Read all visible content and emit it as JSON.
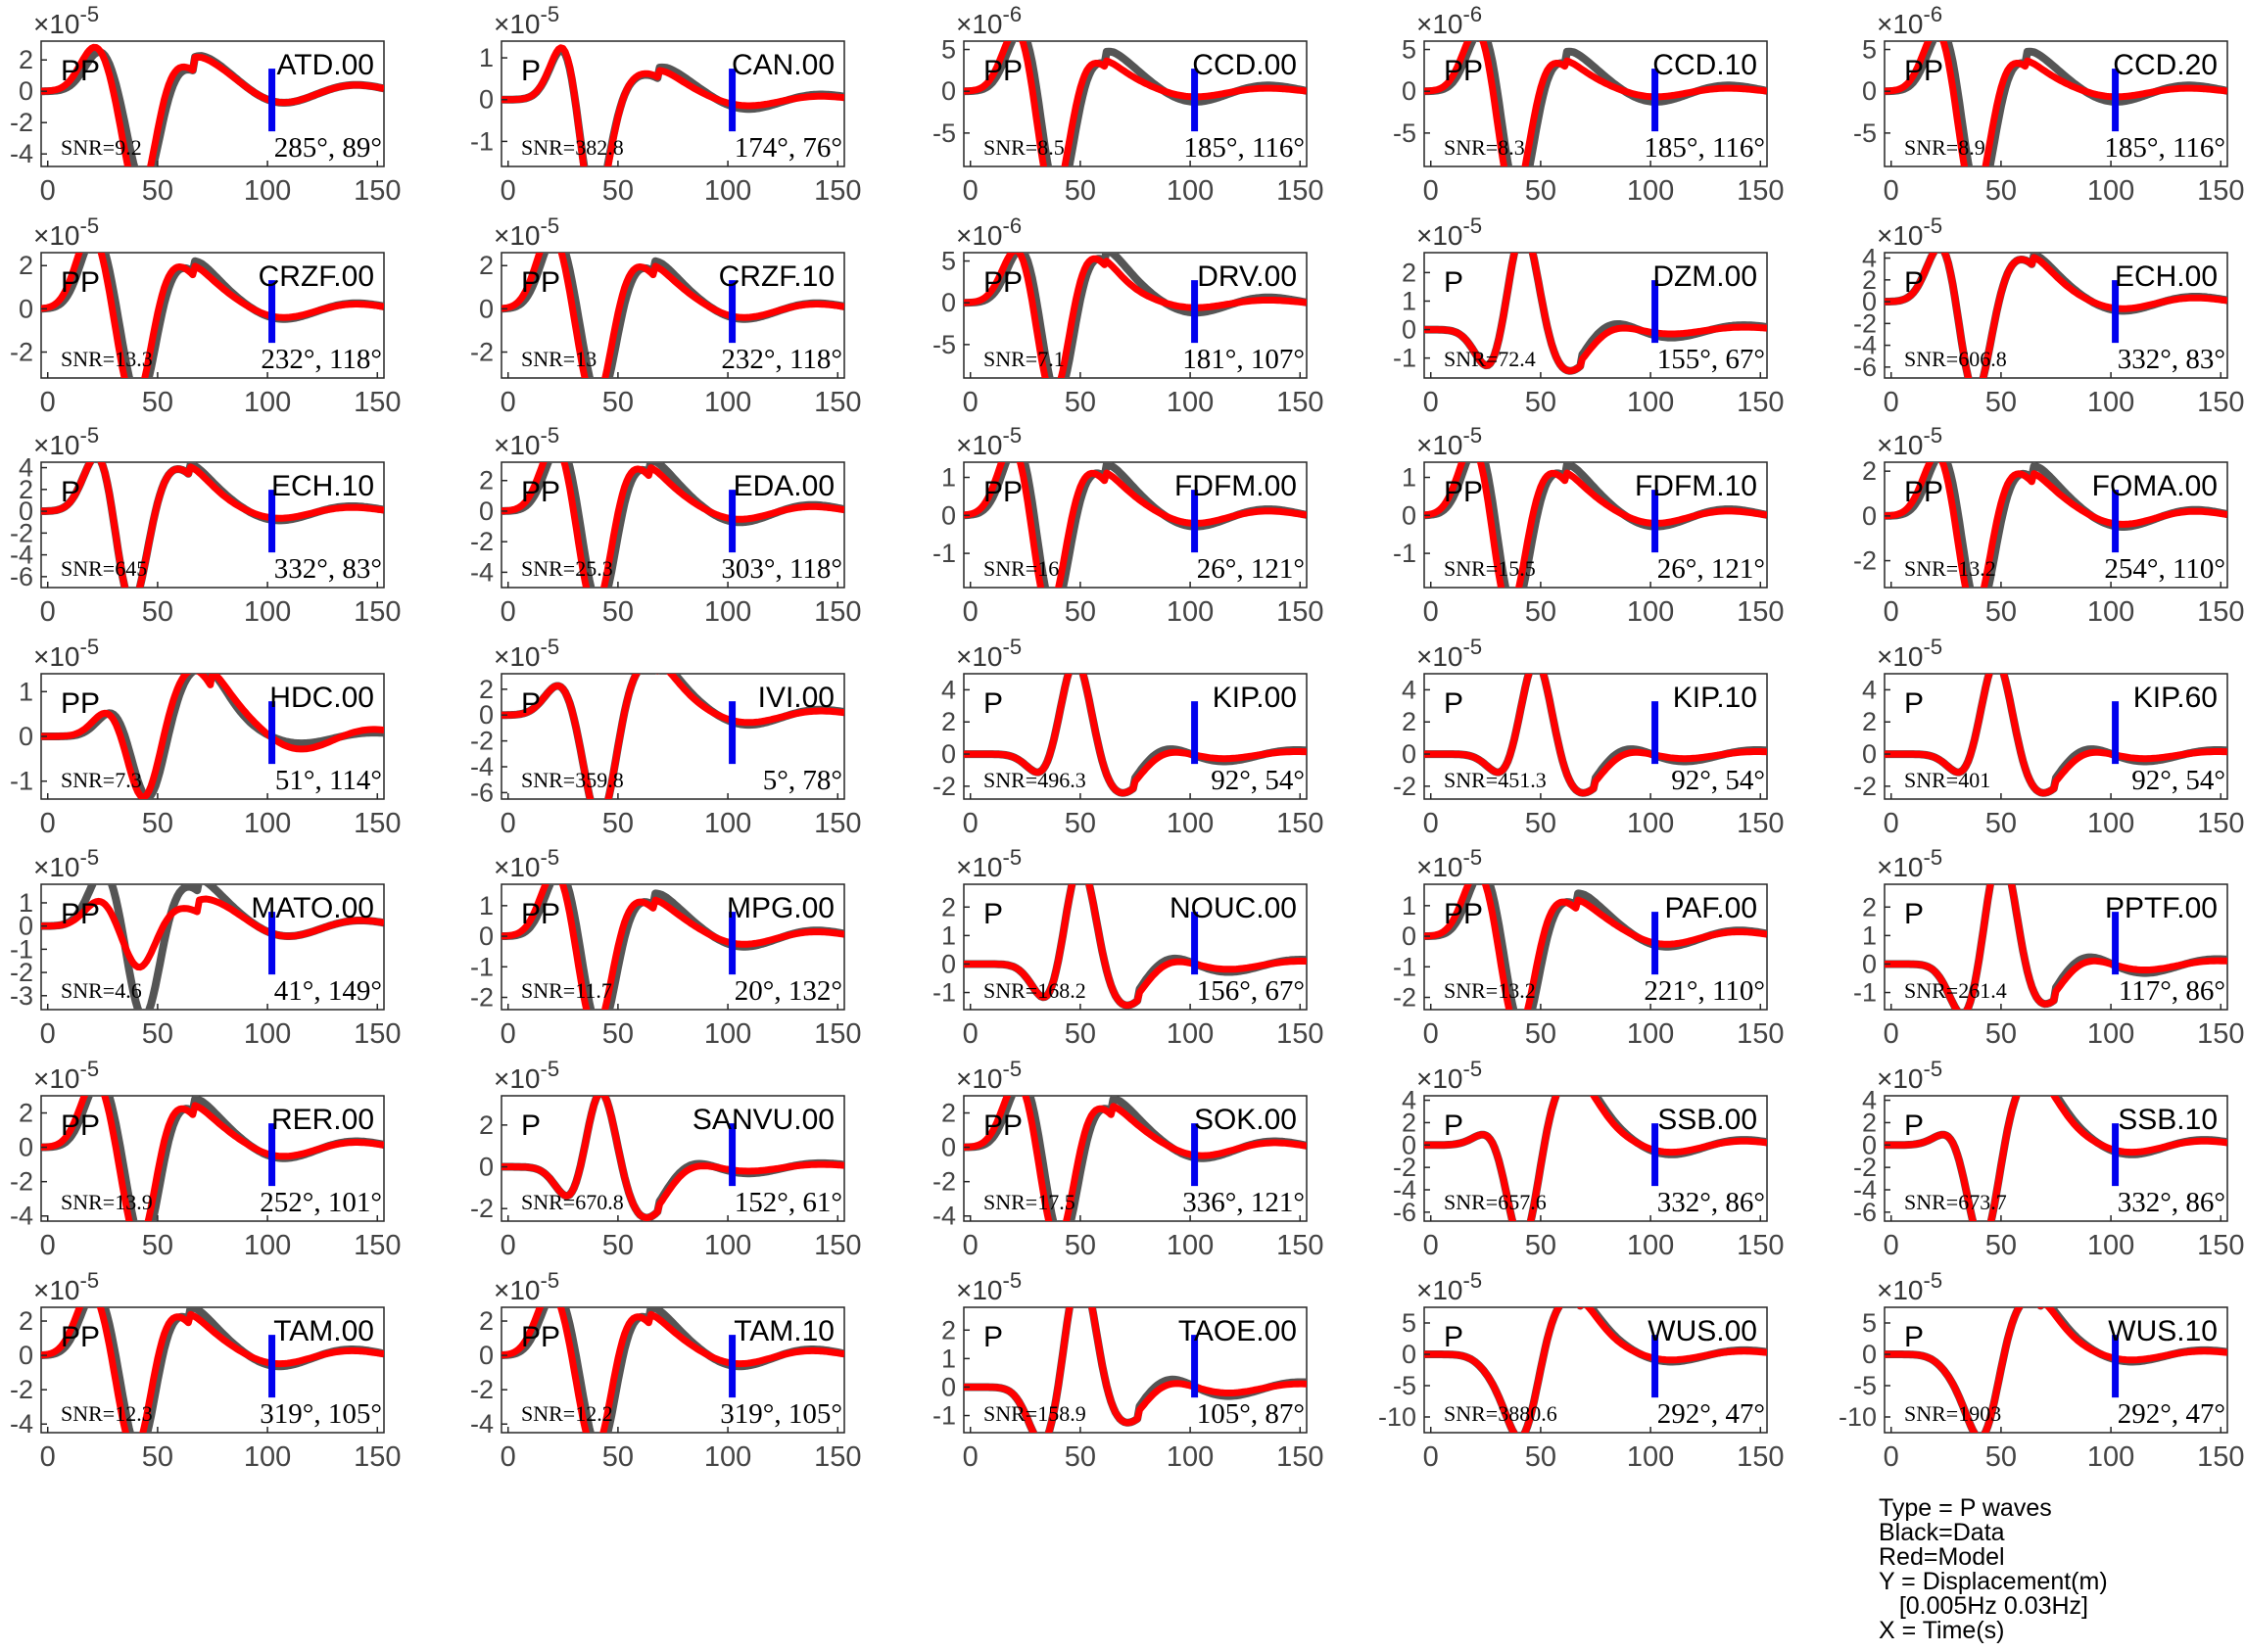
{
  "axis": {
    "x_ticks": [
      "0",
      "50",
      "100",
      "150"
    ],
    "x_range": [
      -3,
      153
    ]
  },
  "colors": {
    "data": "#555555",
    "model": "#ff0000",
    "marker": "#0000ee"
  },
  "legend": {
    "lines": [
      "Type = P waves",
      "Black=Data",
      "Red=Model",
      "Y = Displacement(m)",
      "   [0.005Hz 0.03Hz]",
      "X = Time(s)"
    ]
  },
  "chart_data": [
    {
      "type": "line",
      "station": "ATD.00",
      "phase": "PP",
      "snr": "SNR=9.2",
      "angles": "285°, 89°",
      "exponent": "-5",
      "y_ticks": [
        "2",
        "0",
        "-2",
        "-4"
      ],
      "ylim": [
        -4.8,
        3.2
      ],
      "w": {
        "t1": 24,
        "a1": 2.6,
        "t2": 44,
        "a2": -6.6,
        "t3": 60,
        "a3": 1.6,
        "dec": 0.8
      },
      "dm": {
        "p1": 1.12,
        "sh": 2,
        "tr": 1.15
      }
    },
    {
      "type": "line",
      "station": "CAN.00",
      "phase": "P",
      "snr": "SNR=382.8",
      "angles": "174°, 76°",
      "exponent": "-5",
      "y_ticks": [
        "1",
        "0",
        "-1"
      ],
      "ylim": [
        -1.6,
        1.4
      ],
      "w": {
        "t1": 28,
        "a1": 1.9,
        "t2": 38,
        "a2": -3.2,
        "t3": 62,
        "a3": 0.6,
        "dec": 0.5
      },
      "dm": {
        "p1": 1.05,
        "sh": 0,
        "tr": 1.6
      }
    },
    {
      "type": "line",
      "station": "CCD.00",
      "phase": "PP",
      "snr": "SNR=8.5",
      "angles": "185°, 116°",
      "exponent": "-6",
      "y_ticks": [
        "5",
        "0",
        "-5"
      ],
      "ylim": [
        -9,
        6
      ],
      "w": {
        "t1": 24,
        "a1": 8,
        "t2": 40,
        "a2": -15,
        "t3": 55,
        "a3": 4,
        "dec": 0.6
      },
      "dm": {
        "p1": 1.0,
        "sh": 2,
        "tr": 1.9
      }
    },
    {
      "type": "line",
      "station": "CCD.10",
      "phase": "PP",
      "snr": "SNR=8.3",
      "angles": "185°, 116°",
      "exponent": "-6",
      "y_ticks": [
        "5",
        "0",
        "-5"
      ],
      "ylim": [
        -9,
        6
      ],
      "w": {
        "t1": 24,
        "a1": 8,
        "t2": 40,
        "a2": -15,
        "t3": 55,
        "a3": 4,
        "dec": 0.6
      },
      "dm": {
        "p1": 1.0,
        "sh": 2,
        "tr": 1.9
      }
    },
    {
      "type": "line",
      "station": "CCD.20",
      "phase": "PP",
      "snr": "SNR=8.9",
      "angles": "185°, 116°",
      "exponent": "-6",
      "y_ticks": [
        "5",
        "0",
        "-5"
      ],
      "ylim": [
        -9,
        6
      ],
      "w": {
        "t1": 24,
        "a1": 8,
        "t2": 40,
        "a2": -15,
        "t3": 55,
        "a3": 4,
        "dec": 0.6
      },
      "dm": {
        "p1": 1.0,
        "sh": 2,
        "tr": 1.9
      }
    },
    {
      "type": "line",
      "station": "CRZF.00",
      "phase": "PP",
      "snr": "SNR=13.3",
      "angles": "232°, 118°",
      "exponent": "-5",
      "y_ticks": [
        "2",
        "0",
        "-2"
      ],
      "ylim": [
        -3.2,
        2.6
      ],
      "w": {
        "t1": 22,
        "a1": 3.5,
        "t2": 42,
        "a2": -4.8,
        "t3": 60,
        "a3": 2.0,
        "dec": 0.7
      },
      "dm": {
        "p1": 1.03,
        "sh": 2,
        "tr": 1.2
      }
    },
    {
      "type": "line",
      "station": "CRZF.10",
      "phase": "PP",
      "snr": "SNR=13",
      "angles": "232°, 118°",
      "exponent": "-5",
      "y_ticks": [
        "2",
        "0",
        "-2"
      ],
      "ylim": [
        -3.2,
        2.6
      ],
      "w": {
        "t1": 22,
        "a1": 3.5,
        "t2": 42,
        "a2": -4.8,
        "t3": 60,
        "a3": 2.0,
        "dec": 0.7
      },
      "dm": {
        "p1": 1.03,
        "sh": 2,
        "tr": 1.2
      }
    },
    {
      "type": "line",
      "station": "DRV.00",
      "phase": "PP",
      "snr": "SNR=7.1",
      "angles": "181°, 107°",
      "exponent": "-6",
      "y_ticks": [
        "5",
        "0",
        "-5"
      ],
      "ylim": [
        -9,
        6
      ],
      "w": {
        "t1": 24,
        "a1": 7,
        "t2": 40,
        "a2": -14,
        "t3": 55,
        "a3": 6,
        "dec": 0.6
      },
      "dm": {
        "p1": 1.0,
        "sh": 2,
        "tr": 2.0
      }
    },
    {
      "type": "line",
      "station": "DZM.00",
      "phase": "P",
      "snr": "SNR=72.4",
      "angles": "155°, 67°",
      "exponent": "-5",
      "y_ticks": [
        "2",
        "1",
        "0",
        "-1"
      ],
      "ylim": [
        -1.7,
        2.7
      ],
      "w": {
        "t1": 28,
        "a1": -1.6,
        "t2": 42,
        "a2": 4.0,
        "t3": 62,
        "a3": -1.5,
        "dec": 0.5
      },
      "dm": {
        "p1": 1.0,
        "sh": 0,
        "tr": 1.8
      }
    },
    {
      "type": "line",
      "station": "ECH.00",
      "phase": "P",
      "snr": "SNR=606.8",
      "angles": "332°, 83°",
      "exponent": "-5",
      "y_ticks": [
        "4",
        "2",
        "0",
        "-2",
        "-4",
        "-6"
      ],
      "ylim": [
        -7,
        4.5
      ],
      "w": {
        "t1": 24,
        "a1": 6,
        "t2": 38,
        "a2": -10,
        "t3": 58,
        "a3": 4,
        "dec": 0.6
      },
      "dm": {
        "p1": 1.0,
        "sh": 0,
        "tr": 1.3
      }
    },
    {
      "type": "line",
      "station": "ECH.10",
      "phase": "P",
      "snr": "SNR=645",
      "angles": "332°, 83°",
      "exponent": "-5",
      "y_ticks": [
        "4",
        "2",
        "0",
        "-2",
        "-4",
        "-6"
      ],
      "ylim": [
        -7,
        4.5
      ],
      "w": {
        "t1": 24,
        "a1": 6,
        "t2": 38,
        "a2": -10,
        "t3": 58,
        "a3": 4,
        "dec": 0.6
      },
      "dm": {
        "p1": 1.0,
        "sh": 0,
        "tr": 1.3
      }
    },
    {
      "type": "line",
      "station": "EDA.00",
      "phase": "PP",
      "snr": "SNR=25.3",
      "angles": "303°, 118°",
      "exponent": "-5",
      "y_ticks": [
        "2",
        "0",
        "-2",
        "-4"
      ],
      "ylim": [
        -5,
        3.2
      ],
      "w": {
        "t1": 24,
        "a1": 4.5,
        "t2": 42,
        "a2": -7.5,
        "t3": 58,
        "a3": 3,
        "dec": 0.7
      },
      "dm": {
        "p1": 1.02,
        "sh": 2,
        "tr": 1.4
      }
    },
    {
      "type": "line",
      "station": "FDFM.00",
      "phase": "PP",
      "snr": "SNR=16",
      "angles": "26°, 121°",
      "exponent": "-5",
      "y_ticks": [
        "1",
        "0",
        "-1"
      ],
      "ylim": [
        -1.9,
        1.4
      ],
      "w": {
        "t1": 22,
        "a1": 2,
        "t2": 38,
        "a2": -3,
        "t3": 55,
        "a3": 1.2,
        "dec": 0.7
      },
      "dm": {
        "p1": 1.0,
        "sh": 2,
        "tr": 1.4
      }
    },
    {
      "type": "line",
      "station": "FDFM.10",
      "phase": "PP",
      "snr": "SNR=15.5",
      "angles": "26°, 121°",
      "exponent": "-5",
      "y_ticks": [
        "1",
        "0",
        "-1"
      ],
      "ylim": [
        -1.9,
        1.4
      ],
      "w": {
        "t1": 22,
        "a1": 2,
        "t2": 38,
        "a2": -3,
        "t3": 55,
        "a3": 1.2,
        "dec": 0.7
      },
      "dm": {
        "p1": 1.0,
        "sh": 2,
        "tr": 1.4
      }
    },
    {
      "type": "line",
      "station": "FOMA.00",
      "phase": "PP",
      "snr": "SNR=13.2",
      "angles": "254°, 110°",
      "exponent": "-5",
      "y_ticks": [
        "2",
        "0",
        "-2"
      ],
      "ylim": [
        -3.2,
        2.4
      ],
      "w": {
        "t1": 24,
        "a1": 3,
        "t2": 40,
        "a2": -5,
        "t3": 58,
        "a3": 2,
        "dec": 0.7
      },
      "dm": {
        "p1": 1.0,
        "sh": 2,
        "tr": 1.3
      }
    },
    {
      "type": "line",
      "station": "HDC.00",
      "phase": "PP",
      "snr": "SNR=7.3",
      "angles": "51°, 114°",
      "exponent": "-5",
      "y_ticks": [
        "1",
        "0",
        "-1"
      ],
      "ylim": [
        -1.4,
        1.4
      ],
      "w": {
        "t1": 30,
        "a1": 0.6,
        "t2": 46,
        "a2": -1.6,
        "t3": 68,
        "a3": 1.5,
        "dec": 0.7
      },
      "dm": {
        "p1": 1.0,
        "sh": 2,
        "tr": 0.55
      }
    },
    {
      "type": "line",
      "station": "IVI.00",
      "phase": "P",
      "snr": "SNR=359.8",
      "angles": "5°, 78°",
      "exponent": "-5",
      "y_ticks": [
        "2",
        "0",
        "-2",
        "-4",
        "-6"
      ],
      "ylim": [
        -6.5,
        3.2
      ],
      "w": {
        "t1": 24,
        "a1": 2.5,
        "t2": 42,
        "a2": -9,
        "t3": 62,
        "a3": 4,
        "dec": 0.6
      },
      "dm": {
        "p1": 1.0,
        "sh": 0,
        "tr": 1.3
      }
    },
    {
      "type": "line",
      "station": "KIP.00",
      "phase": "P",
      "snr": "SNR=496.3",
      "angles": "92°, 54°",
      "exponent": "-5",
      "y_ticks": [
        "4",
        "2",
        "0",
        "-2"
      ],
      "ylim": [
        -2.8,
        5
      ],
      "w": {
        "t1": 34,
        "a1": -1.6,
        "t2": 48,
        "a2": 6.5,
        "t3": 68,
        "a3": -2.5,
        "dec": 0.5
      },
      "dm": {
        "p1": 1.0,
        "sh": 0,
        "tr": 1.6
      }
    },
    {
      "type": "line",
      "station": "KIP.10",
      "phase": "P",
      "snr": "SNR=451.3",
      "angles": "92°, 54°",
      "exponent": "-5",
      "y_ticks": [
        "4",
        "2",
        "0",
        "-2"
      ],
      "ylim": [
        -2.8,
        5
      ],
      "w": {
        "t1": 34,
        "a1": -1.6,
        "t2": 48,
        "a2": 6.5,
        "t3": 68,
        "a3": -2.5,
        "dec": 0.5
      },
      "dm": {
        "p1": 1.0,
        "sh": 0,
        "tr": 1.6
      }
    },
    {
      "type": "line",
      "station": "KIP.60",
      "phase": "P",
      "snr": "SNR=401",
      "angles": "92°, 54°",
      "exponent": "-5",
      "y_ticks": [
        "4",
        "2",
        "0",
        "-2"
      ],
      "ylim": [
        -2.8,
        5
      ],
      "w": {
        "t1": 34,
        "a1": -1.6,
        "t2": 48,
        "a2": 6.5,
        "t3": 68,
        "a3": -2.5,
        "dec": 0.5
      },
      "dm": {
        "p1": 1.0,
        "sh": 0,
        "tr": 1.6
      }
    },
    {
      "type": "line",
      "station": "MATO.00",
      "phase": "PP",
      "snr": "SNR=4.6",
      "angles": "41°, 149°",
      "exponent": "-5",
      "y_ticks": [
        "1",
        "0",
        "-1",
        "-2",
        "-3"
      ],
      "ylim": [
        -3.6,
        1.8
      ],
      "w": {
        "t1": 26,
        "a1": 2.5,
        "t2": 44,
        "a2": -4.5,
        "t3": 62,
        "a3": 1.8,
        "dec": 0.7
      },
      "dm": {
        "p1": 0.45,
        "sh": 2,
        "tr": 0.45
      }
    },
    {
      "type": "line",
      "station": "MPG.00",
      "phase": "PP",
      "snr": "SNR=11.7",
      "angles": "20°, 132°",
      "exponent": "-5",
      "y_ticks": [
        "1",
        "0",
        "-1",
        "-2"
      ],
      "ylim": [
        -2.4,
        1.7
      ],
      "w": {
        "t1": 24,
        "a1": 2.2,
        "t2": 42,
        "a2": -3.5,
        "t3": 60,
        "a3": 1.2,
        "dec": 0.7
      },
      "dm": {
        "p1": 1.0,
        "sh": 2,
        "tr": 1.3
      }
    },
    {
      "type": "line",
      "station": "NOUC.00",
      "phase": "P",
      "snr": "SNR=168.2",
      "angles": "156°, 67°",
      "exponent": "-5",
      "y_ticks": [
        "2",
        "1",
        "0",
        "-1"
      ],
      "ylim": [
        -1.6,
        2.8
      ],
      "w": {
        "t1": 36,
        "a1": -1.5,
        "t2": 50,
        "a2": 4,
        "t3": 70,
        "a3": -1.5,
        "dec": 0.5
      },
      "dm": {
        "p1": 1.0,
        "sh": 0,
        "tr": 1.5
      }
    },
    {
      "type": "line",
      "station": "PAF.00",
      "phase": "PP",
      "snr": "SNR=13.2",
      "angles": "221°, 110°",
      "exponent": "-5",
      "y_ticks": [
        "1",
        "0",
        "-1",
        "-2"
      ],
      "ylim": [
        -2.4,
        1.7
      ],
      "w": {
        "t1": 24,
        "a1": 2.2,
        "t2": 42,
        "a2": -3.5,
        "t3": 60,
        "a3": 1.2,
        "dec": 0.7
      },
      "dm": {
        "p1": 1.0,
        "sh": 2,
        "tr": 1.3
      }
    },
    {
      "type": "line",
      "station": "PPTF.00",
      "phase": "P",
      "snr": "SNR=261.4",
      "angles": "117°, 86°",
      "exponent": "-5",
      "y_ticks": [
        "2",
        "1",
        "0",
        "-1"
      ],
      "ylim": [
        -1.6,
        2.8
      ],
      "w": {
        "t1": 34,
        "a1": -2,
        "t2": 50,
        "a2": 4.5,
        "t3": 68,
        "a3": -1.5,
        "dec": 0.5
      },
      "dm": {
        "p1": 1.0,
        "sh": 0,
        "tr": 1.5
      }
    },
    {
      "type": "line",
      "station": "RER.00",
      "phase": "PP",
      "snr": "SNR=13.9",
      "angles": "252°, 101°",
      "exponent": "-5",
      "y_ticks": [
        "2",
        "0",
        "-2",
        "-4"
      ],
      "ylim": [
        -4.3,
        3
      ],
      "w": {
        "t1": 24,
        "a1": 4,
        "t2": 44,
        "a2": -6.5,
        "t3": 60,
        "a3": 2.5,
        "dec": 0.7
      },
      "dm": {
        "p1": 1.0,
        "sh": 2,
        "tr": 1.2
      }
    },
    {
      "type": "line",
      "station": "SANVU.00",
      "phase": "P",
      "snr": "SNR=670.8",
      "angles": "152°, 61°",
      "exponent": "-5",
      "y_ticks": [
        "2",
        "0",
        "-2"
      ],
      "ylim": [
        -2.6,
        3.4
      ],
      "w": {
        "t1": 30,
        "a1": -2,
        "t2": 42,
        "a2": 4.5,
        "t3": 62,
        "a3": -2.5,
        "dec": 0.5
      },
      "dm": {
        "p1": 1.0,
        "sh": 0,
        "tr": 1.5
      }
    },
    {
      "type": "line",
      "station": "SOK.00",
      "phase": "PP",
      "snr": "SNR=17.5",
      "angles": "336°, 121°",
      "exponent": "-5",
      "y_ticks": [
        "2",
        "0",
        "-2",
        "-4"
      ],
      "ylim": [
        -4.3,
        3
      ],
      "w": {
        "t1": 24,
        "a1": 4,
        "t2": 42,
        "a2": -6.5,
        "t3": 58,
        "a3": 2.5,
        "dec": 0.7
      },
      "dm": {
        "p1": 1.0,
        "sh": 2,
        "tr": 1.3
      }
    },
    {
      "type": "line",
      "station": "SSB.00",
      "phase": "P",
      "snr": "SNR=657.6",
      "angles": "332°, 86°",
      "exponent": "-5",
      "y_ticks": [
        "4",
        "2",
        "0",
        "-2",
        "-4",
        "-6"
      ],
      "ylim": [
        -6.8,
        4.4
      ],
      "w": {
        "t1": 28,
        "a1": 1.5,
        "t2": 42,
        "a2": -10,
        "t3": 62,
        "a3": 6,
        "dec": 0.6
      },
      "dm": {
        "p1": 1.0,
        "sh": 0,
        "tr": 1.3
      }
    },
    {
      "type": "line",
      "station": "SSB.10",
      "phase": "P",
      "snr": "SNR=673.7",
      "angles": "332°, 86°",
      "exponent": "-5",
      "y_ticks": [
        "4",
        "2",
        "0",
        "-2",
        "-4",
        "-6"
      ],
      "ylim": [
        -6.8,
        4.4
      ],
      "w": {
        "t1": 28,
        "a1": 1.5,
        "t2": 42,
        "a2": -10,
        "t3": 62,
        "a3": 6,
        "dec": 0.6
      },
      "dm": {
        "p1": 1.0,
        "sh": 0,
        "tr": 1.3
      }
    },
    {
      "type": "line",
      "station": "TAM.00",
      "phase": "PP",
      "snr": "SNR=12.3",
      "angles": "319°, 105°",
      "exponent": "-5",
      "y_ticks": [
        "2",
        "0",
        "-2",
        "-4"
      ],
      "ylim": [
        -4.5,
        2.8
      ],
      "w": {
        "t1": 22,
        "a1": 3.8,
        "t2": 42,
        "a2": -6.5,
        "t3": 58,
        "a3": 2.5,
        "dec": 0.7
      },
      "dm": {
        "p1": 1.0,
        "sh": 2,
        "tr": 1.3
      }
    },
    {
      "type": "line",
      "station": "TAM.10",
      "phase": "PP",
      "snr": "SNR=12.2",
      "angles": "319°, 105°",
      "exponent": "-5",
      "y_ticks": [
        "2",
        "0",
        "-2",
        "-4"
      ],
      "ylim": [
        -4.5,
        2.8
      ],
      "w": {
        "t1": 22,
        "a1": 3.8,
        "t2": 42,
        "a2": -6.5,
        "t3": 58,
        "a3": 2.5,
        "dec": 0.7
      },
      "dm": {
        "p1": 1.0,
        "sh": 2,
        "tr": 1.3
      }
    },
    {
      "type": "line",
      "station": "TAOE.00",
      "phase": "P",
      "snr": "SNR=158.9",
      "angles": "105°, 87°",
      "exponent": "-5",
      "y_ticks": [
        "2",
        "1",
        "0",
        "-1"
      ],
      "ylim": [
        -1.6,
        2.8
      ],
      "w": {
        "t1": 34,
        "a1": -2.2,
        "t2": 50,
        "a2": 4.5,
        "t3": 70,
        "a3": -1.3,
        "dec": 0.5
      },
      "dm": {
        "p1": 1.0,
        "sh": 0,
        "tr": 1.5
      }
    },
    {
      "type": "line",
      "station": "WUS.00",
      "phase": "P",
      "snr": "SNR=3880.6",
      "angles": "292°, 47°",
      "exponent": "-5",
      "y_ticks": [
        "5",
        "0",
        "-5",
        "-10"
      ],
      "ylim": [
        -12.5,
        7.5
      ],
      "w": {
        "t1": 30,
        "a1": -3,
        "t2": 42,
        "a2": -14,
        "t3": 62,
        "a3": 9,
        "dec": 0.6
      },
      "dm": {
        "p1": 1.0,
        "sh": 0,
        "tr": 1.3
      }
    },
    {
      "type": "line",
      "station": "WUS.10",
      "phase": "P",
      "snr": "SNR=1903",
      "angles": "292°, 47°",
      "exponent": "-5",
      "y_ticks": [
        "5",
        "0",
        "-5",
        "-10"
      ],
      "ylim": [
        -12.5,
        7.5
      ],
      "w": {
        "t1": 30,
        "a1": -3,
        "t2": 42,
        "a2": -14,
        "t3": 62,
        "a3": 9,
        "dec": 0.6
      },
      "dm": {
        "p1": 1.0,
        "sh": 0,
        "tr": 1.3
      }
    }
  ]
}
